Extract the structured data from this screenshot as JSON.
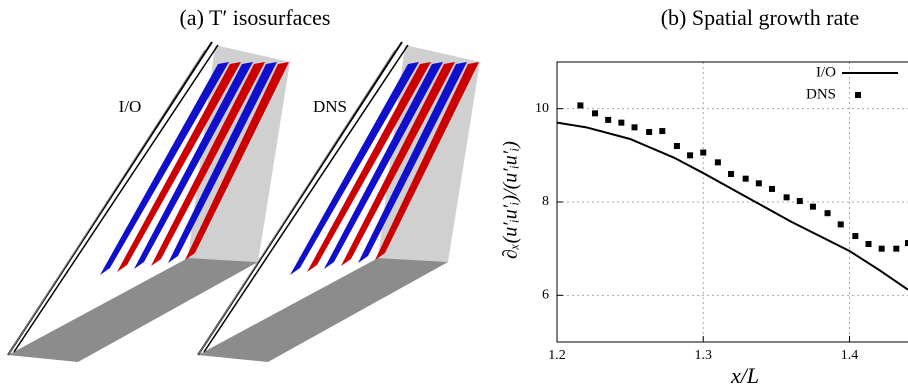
{
  "panel_a": {
    "title": "(a) T′ isosurfaces",
    "labels": [
      "I/O",
      "DNS"
    ]
  },
  "chart_data": {
    "type": "line",
    "title": "(b) Spatial growth rate",
    "x_label": "x/L",
    "y_label": "∂ₓ(u′ᵢu′ᵢ)/(u′ᵢu′ᵢ)",
    "xlim": [
      1.2,
      1.44
    ],
    "xticks": [
      1.2,
      1.3,
      1.4
    ],
    "ylim": [
      5,
      11
    ],
    "yticks": [
      6,
      8,
      10
    ],
    "grid": true,
    "legend": "top-right",
    "series": [
      {
        "name": "I/O",
        "color": "#000000",
        "style": "line",
        "x": [
          1.2,
          1.22,
          1.25,
          1.28,
          1.3,
          1.33,
          1.36,
          1.4,
          1.42,
          1.44
        ],
        "values": [
          9.7,
          9.6,
          9.35,
          8.95,
          8.62,
          8.1,
          7.58,
          6.95,
          6.55,
          6.12
        ]
      },
      {
        "name": "DNS",
        "color": "#000000",
        "style": "square",
        "x": [
          1.216,
          1.226,
          1.235,
          1.244,
          1.253,
          1.263,
          1.272,
          1.282,
          1.291,
          1.3,
          1.31,
          1.319,
          1.329,
          1.338,
          1.347,
          1.357,
          1.366,
          1.375,
          1.385,
          1.394,
          1.404,
          1.413,
          1.422,
          1.432,
          1.44
        ],
        "values": [
          10.07,
          9.9,
          9.76,
          9.7,
          9.6,
          9.5,
          9.52,
          9.2,
          9.0,
          9.06,
          8.85,
          8.6,
          8.5,
          8.4,
          8.28,
          8.1,
          8.02,
          7.9,
          7.76,
          7.52,
          7.27,
          7.1,
          7.0,
          7.0,
          7.12
        ]
      }
    ]
  }
}
